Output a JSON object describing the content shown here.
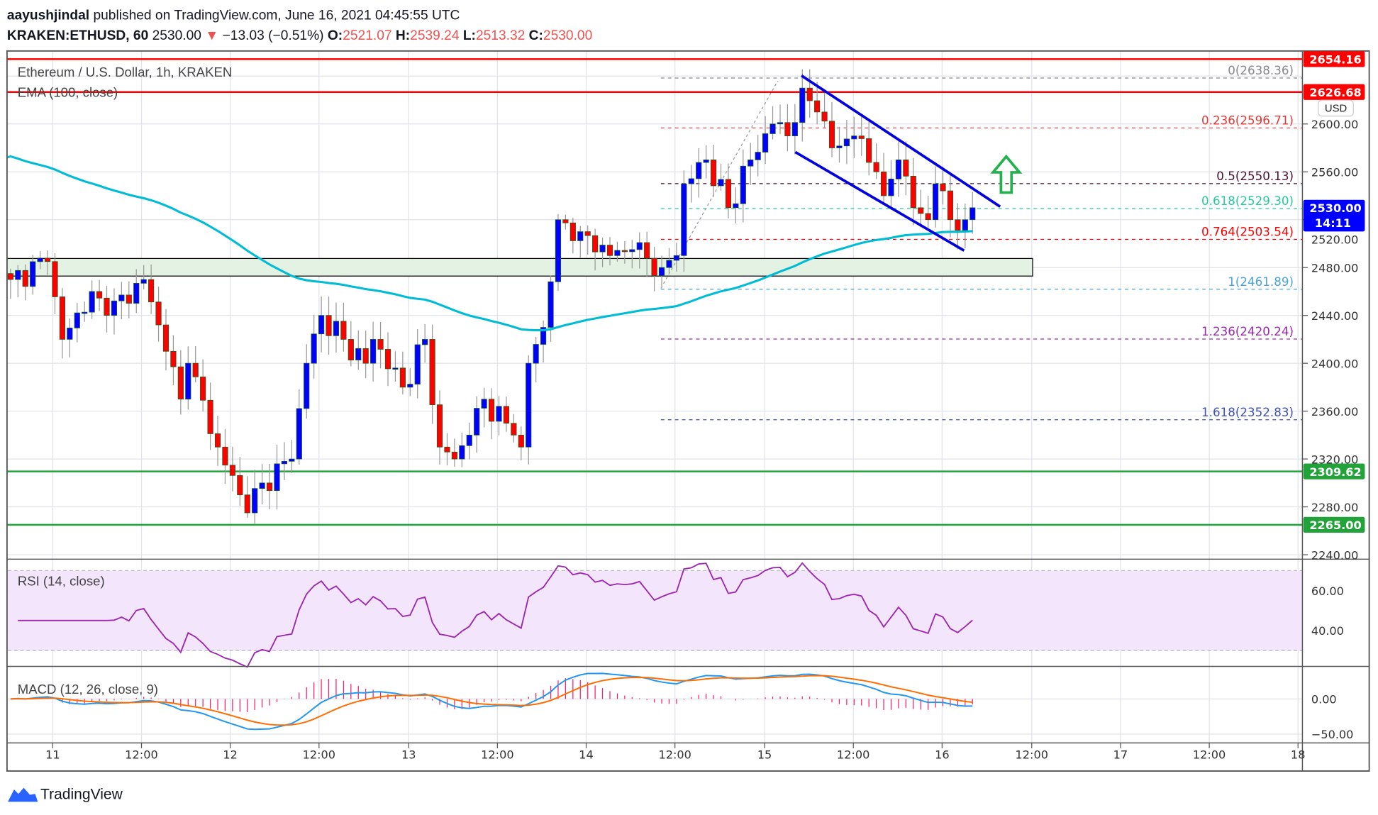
{
  "header": {
    "author": "aayushjindal",
    "published": "published on TradingView.com, June 16, 2021 04:45:55 UTC",
    "symbol": "KRAKEN:ETHUSD, 60",
    "last": "2530.00",
    "change": "−13.03 (−0.51%)",
    "o_label": "O:",
    "o": "2521.07",
    "h_label": "H:",
    "h": "2539.24",
    "l_label": "L:",
    "l": "2513.32",
    "c_label": "C:",
    "c": "2530.00"
  },
  "legend": {
    "main": "Ethereum / U.S. Dollar, 1h, KRAKEN",
    "ema": "EMA (100, close)",
    "rsi": "RSI (14, close)",
    "macd": "MACD (12, 26, close, 9)"
  },
  "currency": "USD",
  "price_badges": {
    "r1": "2654.16",
    "r2": "2626.68",
    "last": "2530.00",
    "countdown": "14:11",
    "s1": "2309.62",
    "s2": "2265.00"
  },
  "fib": [
    {
      "label": "0(2638.36)",
      "price": 2638.36,
      "color": "#888888"
    },
    {
      "label": "0.236(2596.71)",
      "price": 2596.71,
      "color": "#e53935"
    },
    {
      "label": "0.5(2550.13)",
      "price": 2550.13,
      "color": "#4a1032"
    },
    {
      "label": "0.618(2529.30)",
      "price": 2529.3,
      "color": "#26c99a"
    },
    {
      "label": "0.764(2503.54)",
      "price": 2503.54,
      "color": "#ff0000"
    },
    {
      "label": "1(2461.89)",
      "price": 2461.89,
      "color": "#4aa3df"
    },
    {
      "label": "1.236(2420.24)",
      "price": 2420.24,
      "color": "#9c27b0"
    },
    {
      "label": "1.618(2352.83)",
      "price": 2352.83,
      "color": "#3f51b5"
    }
  ],
  "price_ticks": [
    "2600.00",
    "2560.00",
    "2520.00",
    "2480.00",
    "2440.00",
    "2400.00",
    "2360.00",
    "2320.00",
    "2280.00",
    "2240.00"
  ],
  "rsi_ticks": [
    "60.00",
    "40.00"
  ],
  "macd_ticks": [
    "0.00",
    "−50.00"
  ],
  "time_ticks": [
    "11",
    "12:00",
    "12",
    "12:00",
    "13",
    "12:00",
    "14",
    "12:00",
    "15",
    "12:00",
    "16",
    "12:00",
    "17",
    "12:00",
    "18"
  ],
  "branding": "TradingView",
  "colors": {
    "up": "#0000ff",
    "down": "#ff0000",
    "ema": "#00bcd4",
    "rsi": "#9c27b0",
    "macd": "#2196f3",
    "signal": "#ff6d00",
    "support": "#22a33a",
    "resistance": "#ff0000",
    "channel": "#0000e0",
    "arrow": "#22b14c"
  },
  "chart_data": {
    "type": "candlestick",
    "title": "Ethereum / U.S. Dollar, 1h, KRAKEN",
    "interval": "1h",
    "ylim": [
      2230,
      2660
    ],
    "resistance_levels": [
      2654.16,
      2626.68
    ],
    "support_levels": [
      2309.62,
      2265.0
    ],
    "support_zone": [
      2474,
      2488
    ],
    "close_keypoints_hour_price": [
      [
        0,
        2470
      ],
      [
        5,
        2485
      ],
      [
        7,
        2420
      ],
      [
        11,
        2460
      ],
      [
        13,
        2440
      ],
      [
        18,
        2470
      ],
      [
        21,
        2410
      ],
      [
        23,
        2370
      ],
      [
        24,
        2400
      ],
      [
        28,
        2330
      ],
      [
        31,
        2290
      ],
      [
        32,
        2275
      ],
      [
        34,
        2300
      ],
      [
        38,
        2320
      ],
      [
        40,
        2400
      ],
      [
        42,
        2440
      ],
      [
        45,
        2420
      ],
      [
        48,
        2400
      ],
      [
        49,
        2420
      ],
      [
        53,
        2380
      ],
      [
        56,
        2420
      ],
      [
        58,
        2330
      ],
      [
        60,
        2320
      ],
      [
        62,
        2340
      ],
      [
        64,
        2370
      ],
      [
        68,
        2340
      ],
      [
        69,
        2330
      ],
      [
        70,
        2400
      ],
      [
        72,
        2430
      ],
      [
        74,
        2520
      ],
      [
        77,
        2510
      ],
      [
        81,
        2490
      ],
      [
        84,
        2495
      ],
      [
        88,
        2480
      ],
      [
        90,
        2490
      ],
      [
        91,
        2550
      ],
      [
        94,
        2570
      ],
      [
        97,
        2530
      ],
      [
        100,
        2570
      ],
      [
        103,
        2600
      ],
      [
        105,
        2590
      ],
      [
        107,
        2630
      ],
      [
        109,
        2610
      ],
      [
        111,
        2580
      ],
      [
        114,
        2590
      ],
      [
        117,
        2560
      ],
      [
        118,
        2540
      ],
      [
        120,
        2570
      ],
      [
        122,
        2530
      ],
      [
        124,
        2520
      ],
      [
        125,
        2550
      ],
      [
        127,
        2520
      ],
      [
        129,
        2520
      ],
      [
        130,
        2530
      ]
    ]
  }
}
